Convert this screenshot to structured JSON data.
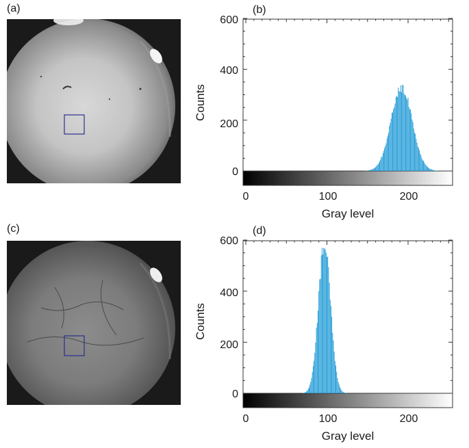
{
  "figure": {
    "panels": [
      {
        "id": "a",
        "label": "(a)",
        "type": "image",
        "shade": "bright"
      },
      {
        "id": "b",
        "label": "(b)",
        "type": "histogram"
      },
      {
        "id": "c",
        "label": "(c)",
        "type": "image",
        "shade": "dark"
      },
      {
        "id": "d",
        "label": "(d)",
        "type": "histogram"
      }
    ],
    "roi_color": "#2a2f8f",
    "bar_color": "#1f9ad6"
  },
  "chart_data": [
    {
      "type": "bar",
      "panel": "(b)",
      "title": "",
      "xlabel": "Gray level",
      "ylabel": "Counts",
      "xlim": [
        0,
        255
      ],
      "ylim": [
        -40,
        600
      ],
      "xticks": [
        0,
        100,
        200
      ],
      "yticks": [
        0,
        200,
        400,
        600
      ],
      "colorbar": "grayscale 0-255 along the baseline",
      "distribution": {
        "shape": "approximately normal",
        "peak_gray_level": 192,
        "peak_counts": 330,
        "std_gray_level": 13
      },
      "x": [
        150,
        155,
        160,
        165,
        170,
        175,
        180,
        185,
        190,
        195,
        200,
        205,
        210,
        215,
        220,
        225,
        230
      ],
      "values": [
        2,
        8,
        20,
        45,
        90,
        165,
        245,
        305,
        330,
        310,
        255,
        175,
        100,
        50,
        20,
        8,
        2
      ]
    },
    {
      "type": "bar",
      "panel": "(d)",
      "title": "",
      "xlabel": "Gray level",
      "ylabel": "Counts",
      "xlim": [
        0,
        255
      ],
      "ylim": [
        -40,
        600
      ],
      "xticks": [
        0,
        100,
        200
      ],
      "yticks": [
        0,
        200,
        400,
        600
      ],
      "colorbar": "grayscale 0-255 along the baseline",
      "distribution": {
        "shape": "approximately normal",
        "peak_gray_level": 97,
        "peak_counts": 590,
        "std_gray_level": 7.5
      },
      "x": [
        70,
        75,
        80,
        85,
        90,
        95,
        100,
        105,
        110,
        115,
        120
      ],
      "values": [
        5,
        30,
        90,
        250,
        440,
        570,
        550,
        390,
        180,
        40,
        5
      ]
    }
  ]
}
